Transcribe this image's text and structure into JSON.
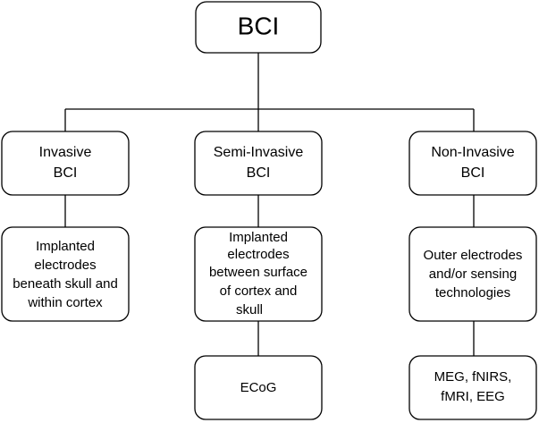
{
  "root": {
    "label": "BCI"
  },
  "categories": [
    {
      "title_line1": "Invasive",
      "title_line2": "BCI",
      "description": [
        "Implanted",
        "electrodes",
        "beneath skull and",
        "within cortex"
      ]
    },
    {
      "title_line1": "Semi-Invasive",
      "title_line2": "BCI",
      "description": [
        "Implanted",
        "electrodes",
        "between surface",
        "of cortex and",
        "skull"
      ],
      "example": "ECoG"
    },
    {
      "title_line1": "Non-Invasive",
      "title_line2": "BCI",
      "description": [
        "Outer electrodes",
        "and/or sensing",
        "technologies"
      ],
      "example": [
        "MEG, fNIRS,",
        "fMRI, EEG"
      ]
    }
  ]
}
